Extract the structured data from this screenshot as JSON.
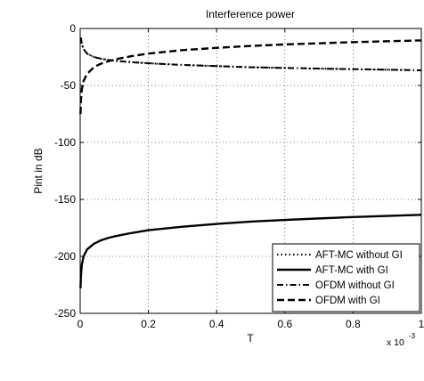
{
  "chart_data": {
    "type": "line",
    "title": "Interference power",
    "xlabel": "T",
    "ylabel": "Pint in dB",
    "x_multiplier_label": "x 10",
    "x_multiplier_exponent": "-3",
    "xlim": [
      0,
      1
    ],
    "ylim": [
      -250,
      0
    ],
    "x_ticks": [
      0,
      0.2,
      0.4,
      0.6,
      0.8,
      1
    ],
    "x_tick_labels": [
      "0",
      "0.2",
      "0.4",
      "0.6",
      "0.8",
      "1"
    ],
    "y_ticks": [
      0,
      -50,
      -100,
      -150,
      -200,
      -250
    ],
    "y_tick_labels": [
      "0",
      "-50",
      "-100",
      "-150",
      "-200",
      "-250"
    ],
    "grid": true,
    "legend_position": "bottom-right",
    "series": [
      {
        "name": "AFT-MC without GI",
        "style": "dotted",
        "x": [
          0.002,
          0.005,
          0.01,
          0.02,
          0.04,
          0.06,
          0.08,
          0.1,
          0.15,
          0.2,
          0.3,
          0.4,
          0.5,
          0.6,
          0.7,
          0.8,
          0.9,
          1.0
        ],
        "y": [
          -8,
          -14,
          -18,
          -22,
          -25,
          -26.5,
          -27.5,
          -28.3,
          -29.6,
          -30.5,
          -32,
          -33,
          -34,
          -34.6,
          -35.2,
          -35.7,
          -36.2,
          -36.7
        ]
      },
      {
        "name": "AFT-MC with GI",
        "style": "solid",
        "x": [
          0.001,
          0.002,
          0.005,
          0.01,
          0.02,
          0.04,
          0.06,
          0.08,
          0.1,
          0.15,
          0.2,
          0.3,
          0.4,
          0.5,
          0.6,
          0.7,
          0.8,
          0.9,
          1.0
        ],
        "y": [
          -228,
          -218,
          -207,
          -200,
          -194,
          -189,
          -186,
          -184,
          -182.5,
          -179.5,
          -177,
          -174,
          -171.5,
          -169.5,
          -168,
          -166.7,
          -165.5,
          -164.5,
          -163.5
        ]
      },
      {
        "name": "OFDM without GI",
        "style": "dashdot",
        "x": [
          0.002,
          0.005,
          0.01,
          0.02,
          0.04,
          0.06,
          0.08,
          0.1,
          0.15,
          0.2,
          0.3,
          0.4,
          0.5,
          0.6,
          0.7,
          0.8,
          0.9,
          1.0
        ],
        "y": [
          -8,
          -14,
          -18,
          -22,
          -25,
          -26.5,
          -27.5,
          -28.3,
          -29.6,
          -30.5,
          -32,
          -33,
          -34,
          -34.6,
          -35.2,
          -35.7,
          -36.2,
          -36.7
        ]
      },
      {
        "name": "OFDM with GI",
        "style": "dashed",
        "x": [
          0.001,
          0.002,
          0.005,
          0.01,
          0.02,
          0.04,
          0.06,
          0.08,
          0.1,
          0.15,
          0.2,
          0.3,
          0.4,
          0.5,
          0.6,
          0.7,
          0.8,
          0.9,
          1.0
        ],
        "y": [
          -75,
          -64,
          -53,
          -46,
          -40,
          -34,
          -31,
          -29,
          -27.2,
          -24.3,
          -22,
          -19,
          -17,
          -15.3,
          -14,
          -13,
          -12,
          -11.2,
          -10.5
        ]
      }
    ]
  }
}
